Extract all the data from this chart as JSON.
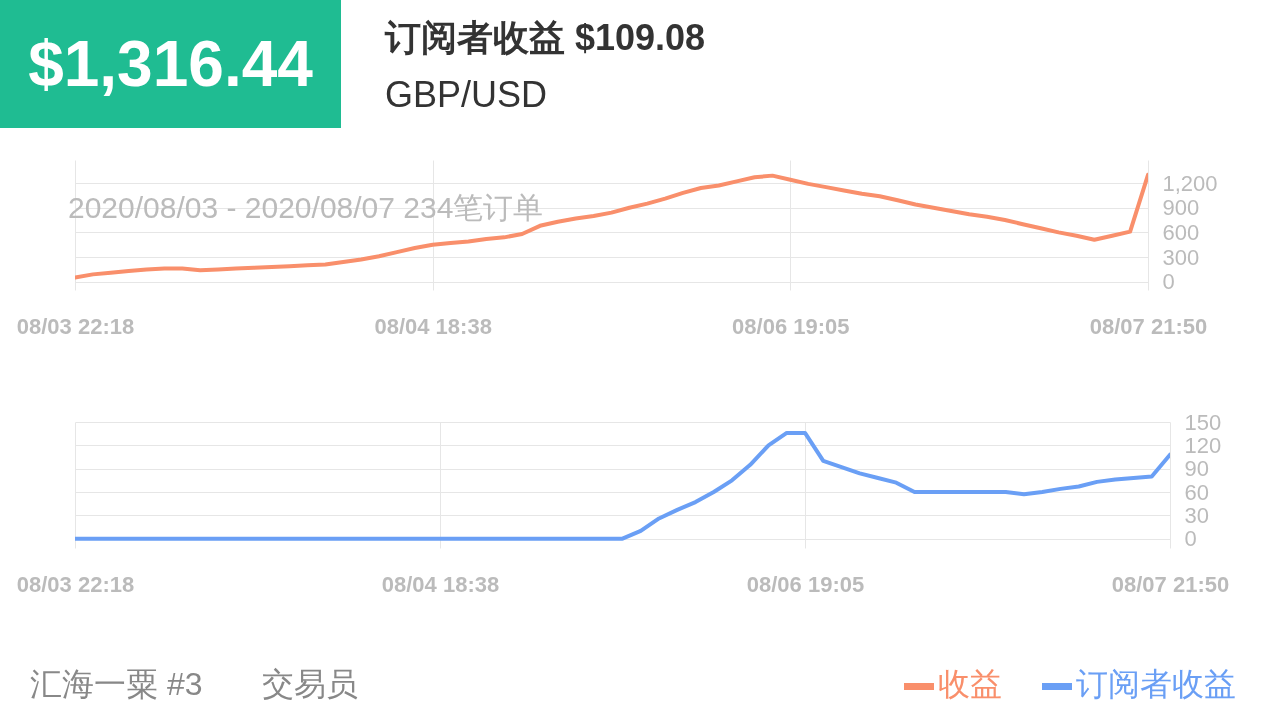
{
  "chart_data": [
    {
      "type": "line",
      "title": "订阅者收益 $109.08",
      "subtitle": "GBP/USD",
      "annotations": [
        "$1,316.44",
        "2020/08/03 - 2020/08/07  234笔订单",
        "汇海一粟 #3",
        "交易员"
      ],
      "categories": [
        "08/03 22:18",
        null,
        null,
        null,
        null,
        null,
        null,
        null,
        null,
        null,
        null,
        null,
        null,
        null,
        null,
        null,
        null,
        null,
        null,
        null,
        "08/04 18:38",
        null,
        null,
        null,
        null,
        null,
        null,
        null,
        null,
        null,
        null,
        null,
        null,
        null,
        null,
        null,
        null,
        null,
        null,
        null,
        "08/06 19:05",
        null,
        null,
        null,
        null,
        null,
        null,
        null,
        null,
        null,
        null,
        null,
        null,
        null,
        null,
        null,
        null,
        null,
        null,
        null,
        "08/07 21:50"
      ],
      "series": [
        {
          "name": "收益",
          "color": "#f98f6b",
          "values": [
            50,
            90,
            110,
            130,
            150,
            160,
            160,
            140,
            150,
            160,
            170,
            180,
            190,
            200,
            210,
            240,
            270,
            310,
            360,
            410,
            450,
            470,
            490,
            520,
            540,
            580,
            680,
            730,
            770,
            800,
            840,
            900,
            950,
            1010,
            1080,
            1140,
            1170,
            1220,
            1270,
            1290,
            1240,
            1190,
            1150,
            1110,
            1070,
            1040,
            990,
            940,
            900,
            860,
            820,
            790,
            750,
            700,
            650,
            600,
            560,
            510,
            560,
            610,
            1300
          ]
        }
      ],
      "ylim": [
        -100,
        1480
      ],
      "yticks": [
        0,
        300,
        600,
        900,
        {
          "value": 1200,
          "label": "1,200"
        }
      ],
      "grid": true,
      "legend": "bottom right"
    },
    {
      "type": "line",
      "categories": [
        "08/03 22:18",
        null,
        null,
        null,
        null,
        null,
        null,
        null,
        null,
        null,
        null,
        null,
        null,
        null,
        null,
        null,
        null,
        null,
        null,
        null,
        "08/04 18:38",
        null,
        null,
        null,
        null,
        null,
        null,
        null,
        null,
        null,
        null,
        null,
        null,
        null,
        null,
        null,
        null,
        null,
        null,
        null,
        "08/06 19:05",
        null,
        null,
        null,
        null,
        null,
        null,
        null,
        null,
        null,
        null,
        null,
        null,
        null,
        null,
        null,
        null,
        null,
        null,
        null,
        "08/07 21:50"
      ],
      "series": [
        {
          "name": "订阅者收益",
          "color": "#6a9ff5",
          "values": [
            0,
            0,
            0,
            0,
            0,
            0,
            0,
            0,
            0,
            0,
            0,
            0,
            0,
            0,
            0,
            0,
            0,
            0,
            0,
            0,
            0,
            0,
            0,
            0,
            0,
            0,
            0,
            0,
            0,
            0,
            0,
            10,
            26,
            37,
            47,
            60,
            75,
            95,
            120,
            136,
            136,
            100,
            92,
            84,
            78,
            72,
            60,
            60,
            60,
            60,
            60,
            60,
            57,
            60,
            64,
            67,
            73,
            76,
            78,
            80,
            108
          ]
        }
      ],
      "ylim": [
        -12,
        150
      ],
      "yticks": [
        0,
        30,
        60,
        90,
        120,
        150
      ],
      "grid": true,
      "legend": "bottom right"
    }
  ]
}
